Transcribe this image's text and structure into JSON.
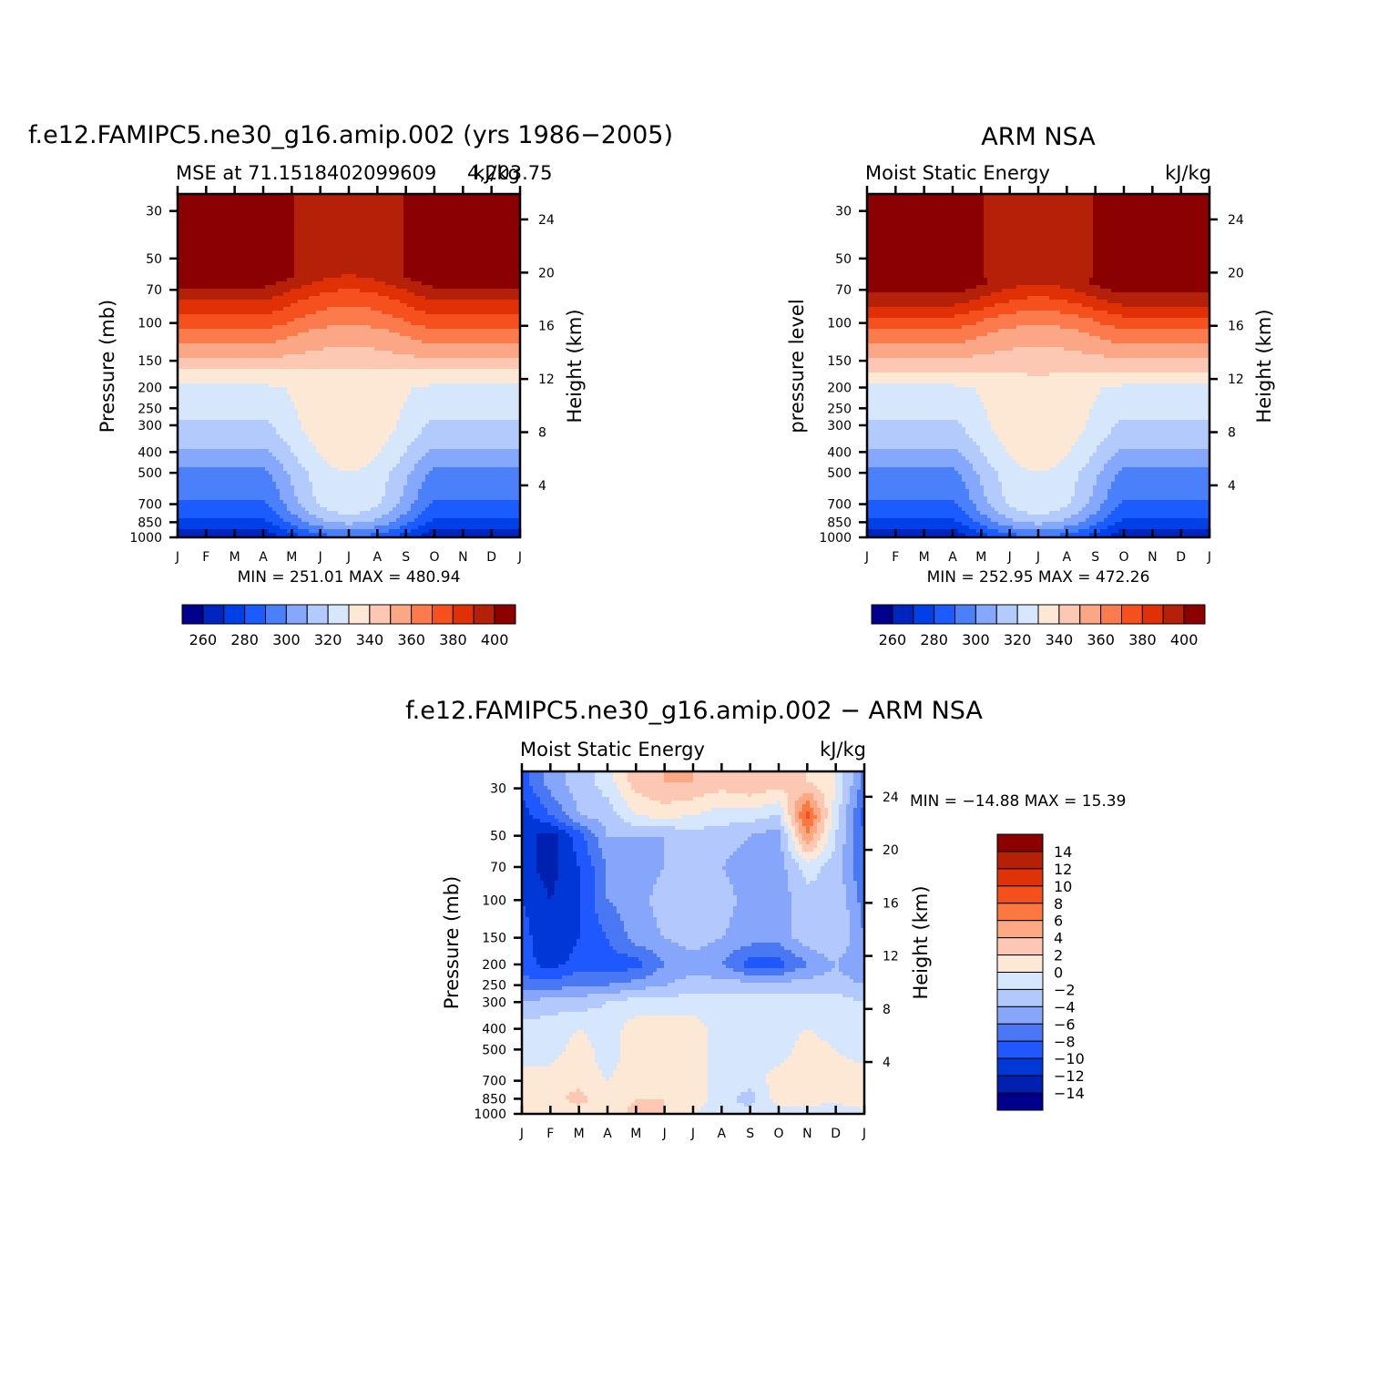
{
  "colors": {
    "scale_absolute": [
      "#00008c",
      "#0025bf",
      "#0040e6",
      "#1a5cff",
      "#4a80fa",
      "#86a8fc",
      "#b3cbfc",
      "#d6e7fc",
      "#fde8d6",
      "#fcc8b4",
      "#fba786",
      "#fc7b4c",
      "#f5501e",
      "#e03005",
      "#b52008",
      "#8b0000"
    ],
    "scale_diff": [
      "#00008c",
      "#0020b0",
      "#0038d8",
      "#1f58ff",
      "#4a78f5",
      "#86a6fc",
      "#b3c8fc",
      "#d6e6fc",
      "#fde8d6",
      "#fcc8b4",
      "#fca882",
      "#fb7840",
      "#f4501c",
      "#df3208",
      "#b62006",
      "#8b0000"
    ]
  },
  "chart_data": [
    {
      "type": "heatmap",
      "id": "model",
      "title": "f.e12.FAMIPC5.ne30_g16.amip.002 (yrs 1986−2005)",
      "subtitle_left": "MSE at 71.1518402099609",
      "subtitle_overlap": "4,203.75",
      "subtitle_right": "kJ/kg",
      "ylabel": "Pressure (mb)",
      "ylabel_right": "Height (km)",
      "months": [
        "J",
        "F",
        "M",
        "A",
        "M",
        "J",
        "J",
        "A",
        "S",
        "O",
        "N",
        "D",
        "J"
      ],
      "pressure_ticks": [
        30,
        50,
        70,
        100,
        150,
        200,
        250,
        300,
        400,
        500,
        700,
        850,
        1000
      ],
      "height_ticks": [
        24,
        20,
        16,
        12,
        8,
        4
      ],
      "ylim": [
        1000,
        25
      ],
      "minmax": "MIN = 251.01 MAX = 480.94",
      "colorbar_labels": [
        "260",
        "280",
        "300",
        "320",
        "340",
        "360",
        "380",
        "400"
      ],
      "contour_levels": [
        255,
        260,
        265,
        270,
        275,
        280,
        285,
        290,
        295,
        300,
        305,
        310,
        315,
        320,
        325,
        330,
        335,
        340,
        345,
        350,
        355,
        360,
        365,
        370,
        375,
        380,
        385,
        390,
        395,
        400
      ],
      "ramp_p": {
        "pref": [
          1000,
          960,
          900,
          850,
          700,
          500,
          400,
          300,
          250,
          200,
          170,
          150,
          130,
          110,
          95,
          80,
          70,
          60
        ],
        "base": [
          255,
          261,
          267,
          273,
          283,
          293,
          303,
          313,
          318,
          323,
          333,
          343,
          353,
          363,
          373,
          383,
          393,
          405
        ]
      },
      "summer_shift": 0.55,
      "summer_low": 45
    },
    {
      "type": "heatmap",
      "id": "obs",
      "title": "ARM NSA",
      "subtitle_left": "Moist Static Energy",
      "subtitle_right": "kJ/kg",
      "ylabel": "pressure level",
      "ylabel_right": "Height (km)",
      "months": [
        "J",
        "F",
        "M",
        "A",
        "M",
        "J",
        "J",
        "A",
        "S",
        "O",
        "N",
        "D",
        "J"
      ],
      "pressure_ticks": [
        30,
        50,
        70,
        100,
        150,
        200,
        250,
        300,
        400,
        500,
        700,
        850,
        1000
      ],
      "height_ticks": [
        24,
        20,
        16,
        12,
        8,
        4
      ],
      "ylim": [
        1000,
        25
      ],
      "minmax": "MIN = 252.95 MAX = 472.26",
      "colorbar_labels": [
        "260",
        "280",
        "300",
        "320",
        "340",
        "360",
        "380",
        "400"
      ],
      "contour_levels": [
        255,
        260,
        265,
        270,
        275,
        280,
        285,
        290,
        295,
        300,
        305,
        310,
        315,
        320,
        325,
        330,
        335,
        340,
        345,
        350,
        355,
        360,
        365,
        370,
        375,
        380,
        385,
        390,
        395,
        400
      ],
      "ramp_p": {
        "pref": [
          1000,
          960,
          900,
          850,
          700,
          500,
          400,
          300,
          250,
          200,
          175,
          150,
          130,
          110,
          95,
          85,
          75,
          65
        ],
        "base": [
          255,
          261,
          267,
          273,
          283,
          293,
          303,
          313,
          318,
          323,
          333,
          343,
          353,
          363,
          373,
          383,
          393,
          405
        ]
      },
      "summer_shift": 0.6,
      "summer_low": 45
    },
    {
      "type": "heatmap",
      "id": "diff",
      "title": "f.e12.FAMIPC5.ne30_g16.amip.002 − ARM NSA",
      "subtitle_left": "Moist Static Energy",
      "subtitle_right": "kJ/kg",
      "ylabel": "Pressure (mb)",
      "ylabel_right": "Height (km)",
      "months": [
        "J",
        "F",
        "M",
        "A",
        "M",
        "J",
        "J",
        "A",
        "S",
        "O",
        "N",
        "D",
        "J"
      ],
      "pressure_ticks": [
        30,
        50,
        70,
        100,
        150,
        200,
        250,
        300,
        400,
        500,
        700,
        850,
        1000
      ],
      "height_ticks": [
        24,
        20,
        16,
        12,
        8,
        4
      ],
      "ylim": [
        1000,
        25
      ],
      "minmax": "MIN = −14.88 MAX =   15.39",
      "colorbar_labels": [
        "14",
        "12",
        "10",
        "8",
        "6",
        "4",
        "2",
        "0",
        "−2",
        "−4",
        "−6",
        "−8",
        "−10",
        "−12",
        "−14"
      ],
      "contour_levels": [
        -14,
        -12,
        -10,
        -8,
        -6,
        -4,
        -2,
        0,
        2,
        4,
        6,
        8,
        10,
        12,
        14
      ],
      "grid_pressure": [
        28,
        40,
        50,
        70,
        100,
        150,
        200,
        250,
        300,
        400,
        500,
        700,
        850,
        1000
      ],
      "grid_values": [
        [
          -9,
          -5,
          -3,
          -1,
          3,
          4,
          4,
          3,
          4,
          3,
          2,
          0,
          -7
        ],
        [
          -11,
          -8,
          -4,
          -3,
          0,
          1,
          0,
          -1,
          -1,
          -2,
          9,
          -1,
          -9
        ],
        [
          -11,
          -13,
          -9,
          -4,
          -4,
          -4,
          -3,
          -3,
          -4,
          -5,
          6,
          -2,
          -8
        ],
        [
          -11,
          -13,
          -10,
          -6,
          -5,
          -4,
          -3,
          -4,
          -5,
          -5,
          -1,
          -3,
          -8
        ],
        [
          -10,
          -12,
          -10,
          -6,
          -5,
          -3,
          -3,
          -3,
          -5,
          -5,
          -3,
          -2,
          -7
        ],
        [
          -9,
          -12,
          -10,
          -8,
          -5,
          -4,
          -3,
          -4,
          -5,
          -5,
          -3,
          -2,
          -6
        ],
        [
          -9,
          -11,
          -9,
          -9,
          -9,
          -6,
          -5,
          -6,
          -9,
          -9,
          -6,
          -4,
          -6
        ],
        [
          -7,
          -7,
          -6,
          -6,
          -5,
          -4,
          -3,
          -3,
          -3,
          -3,
          -3,
          -3,
          -4
        ],
        [
          -4,
          -3,
          -3,
          -2,
          -1,
          -1,
          -1,
          -1,
          -1,
          -1,
          -1,
          -1,
          -2
        ],
        [
          -1,
          -1,
          0,
          -1,
          1,
          1,
          1,
          -1,
          -1,
          -1,
          0,
          -1,
          -1
        ],
        [
          0,
          -1,
          1,
          -1,
          1,
          1,
          1,
          -1,
          -1,
          -1,
          1,
          0,
          -1
        ],
        [
          0,
          1,
          1,
          0,
          1,
          1,
          1,
          -1,
          -1,
          1,
          1,
          1,
          1
        ],
        [
          1,
          1,
          3,
          0,
          2,
          2,
          1,
          -1,
          -3,
          1,
          1,
          1,
          2
        ],
        [
          1,
          0,
          1,
          0,
          3,
          2,
          0,
          -1,
          -1,
          -1,
          -1,
          -2,
          -1
        ]
      ]
    }
  ]
}
